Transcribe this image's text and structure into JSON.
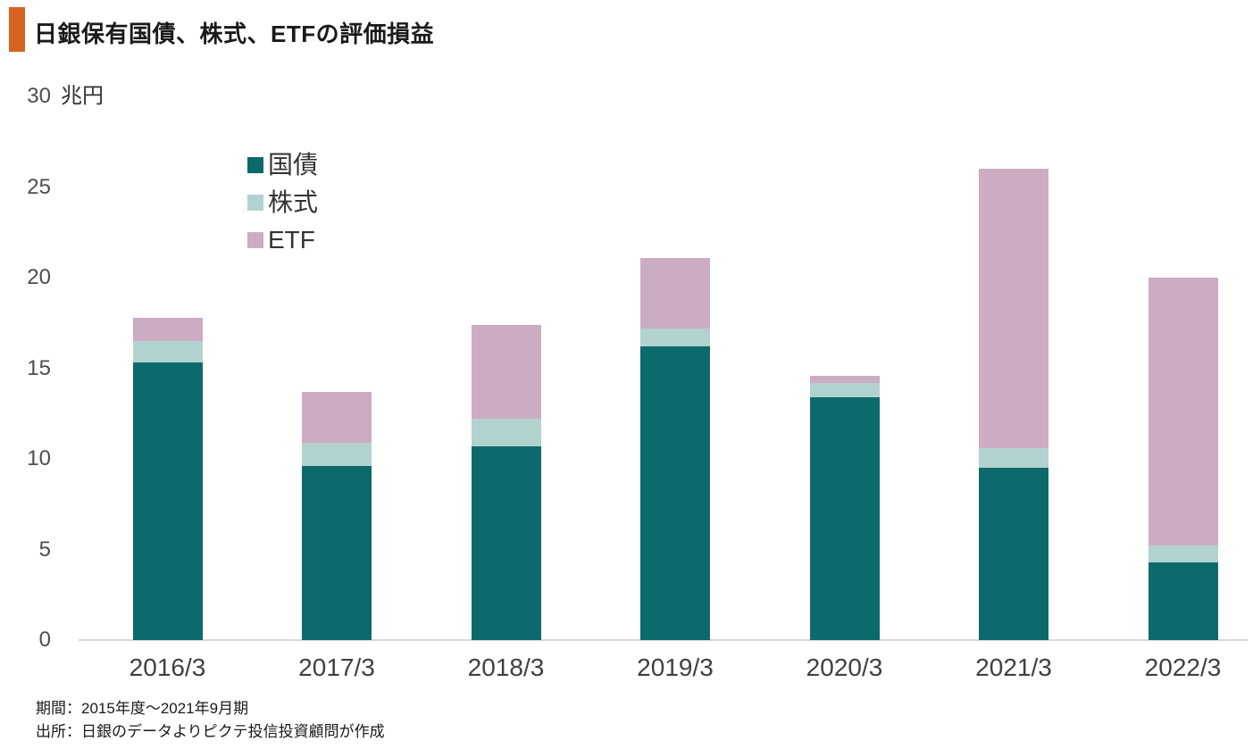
{
  "header": {
    "title": "日銀保有国債、株式、ETFの評価損益",
    "accent_color": "#d4641f"
  },
  "chart_data": {
    "type": "bar",
    "stacked": true,
    "title": "日銀保有国債、株式、ETFの評価損益",
    "unit_label": "兆円",
    "categories": [
      "2016/3",
      "2017/3",
      "2018/3",
      "2019/3",
      "2020/3",
      "2021/3",
      "2022/3"
    ],
    "series": [
      {
        "name": "国債",
        "color": "#0c6a6d",
        "values": [
          15.3,
          9.6,
          10.7,
          16.2,
          13.4,
          9.5,
          4.3
        ]
      },
      {
        "name": "株式",
        "color": "#b2d2cf",
        "values": [
          1.2,
          1.3,
          1.5,
          1.0,
          0.8,
          1.1,
          0.9
        ]
      },
      {
        "name": "ETF",
        "color": "#cbacc3",
        "values": [
          1.3,
          2.8,
          5.2,
          3.9,
          0.4,
          15.4,
          14.8
        ]
      }
    ],
    "yticks": [
      0,
      5,
      10,
      15,
      20,
      25,
      30
    ],
    "ylim": [
      0,
      30
    ],
    "grid": false,
    "legend_position": "upper-left-inside",
    "axis_color": "#d9d9d9"
  },
  "footer": {
    "period": "期間：2015年度～2021年9月期",
    "source": "出所：日銀のデータよりピクテ投信投資顧問が作成"
  }
}
